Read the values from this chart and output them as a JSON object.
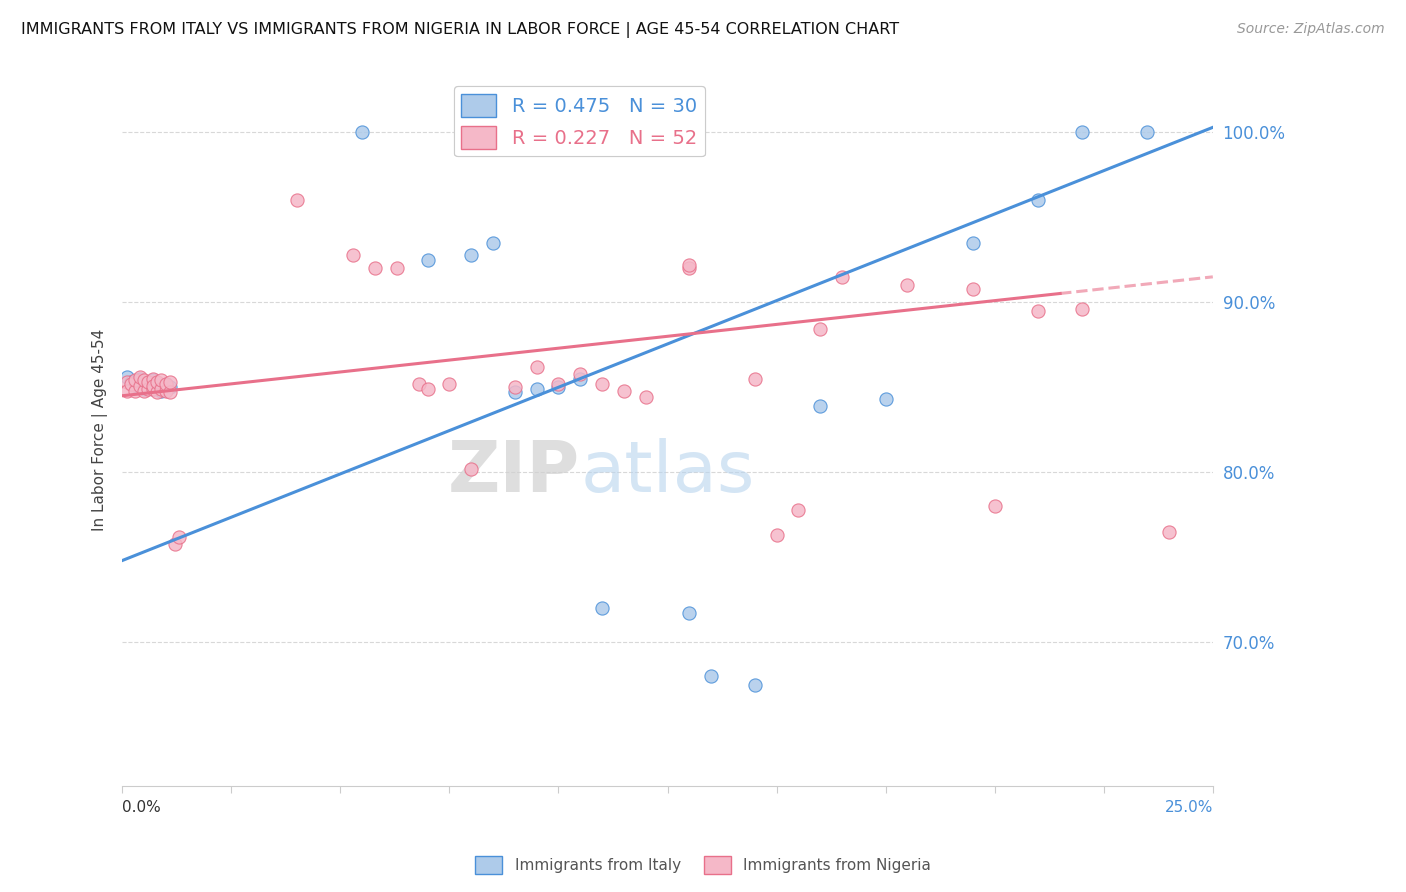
{
  "title": "IMMIGRANTS FROM ITALY VS IMMIGRANTS FROM NIGERIA IN LABOR FORCE | AGE 45-54 CORRELATION CHART",
  "source": "Source: ZipAtlas.com",
  "ylabel": "In Labor Force | Age 45-54",
  "legend_italy": "R = 0.475   N = 30",
  "legend_nigeria": "R = 0.227   N = 52",
  "legend_label_italy": "Immigrants from Italy",
  "legend_label_nigeria": "Immigrants from Nigeria",
  "italy_color": "#aecbea",
  "nigeria_color": "#f5b8c8",
  "italy_line_color": "#4a90d9",
  "nigeria_line_color": "#e8708a",
  "watermark_zip": "ZIP",
  "watermark_atlas": "atlas",
  "xmin": 0.0,
  "xmax": 0.25,
  "ymin": 0.615,
  "ymax": 1.035,
  "italy_scatter_x": [
    0.001,
    0.002,
    0.003,
    0.004,
    0.005,
    0.006,
    0.007,
    0.007,
    0.008,
    0.009,
    0.01,
    0.011,
    0.055,
    0.07,
    0.08,
    0.085,
    0.09,
    0.095,
    0.1,
    0.105,
    0.11,
    0.13,
    0.135,
    0.145,
    0.16,
    0.175,
    0.195,
    0.21,
    0.22,
    0.235
  ],
  "italy_scatter_y": [
    0.856,
    0.853,
    0.851,
    0.855,
    0.849,
    0.853,
    0.849,
    0.854,
    0.851,
    0.848,
    0.852,
    0.85,
    1.0,
    0.925,
    0.928,
    0.935,
    0.847,
    0.849,
    0.85,
    0.855,
    0.72,
    0.717,
    0.68,
    0.675,
    0.839,
    0.843,
    0.935,
    0.96,
    1.0,
    1.0
  ],
  "nigeria_scatter_x": [
    0.001,
    0.001,
    0.002,
    0.003,
    0.003,
    0.004,
    0.004,
    0.005,
    0.005,
    0.006,
    0.006,
    0.007,
    0.007,
    0.007,
    0.008,
    0.008,
    0.009,
    0.009,
    0.01,
    0.01,
    0.011,
    0.011,
    0.012,
    0.013,
    0.04,
    0.053,
    0.058,
    0.063,
    0.068,
    0.07,
    0.075,
    0.08,
    0.09,
    0.095,
    0.1,
    0.105,
    0.11,
    0.115,
    0.12,
    0.13,
    0.13,
    0.145,
    0.15,
    0.155,
    0.16,
    0.165,
    0.18,
    0.195,
    0.2,
    0.21,
    0.22,
    0.24
  ],
  "nigeria_scatter_y": [
    0.853,
    0.848,
    0.852,
    0.848,
    0.854,
    0.851,
    0.856,
    0.848,
    0.854,
    0.849,
    0.853,
    0.849,
    0.855,
    0.851,
    0.847,
    0.853,
    0.849,
    0.854,
    0.848,
    0.852,
    0.847,
    0.853,
    0.758,
    0.762,
    0.96,
    0.928,
    0.92,
    0.92,
    0.852,
    0.849,
    0.852,
    0.802,
    0.85,
    0.862,
    0.852,
    0.858,
    0.852,
    0.848,
    0.844,
    0.92,
    0.922,
    0.855,
    0.763,
    0.778,
    0.884,
    0.915,
    0.91,
    0.908,
    0.78,
    0.895,
    0.896,
    0.765
  ]
}
